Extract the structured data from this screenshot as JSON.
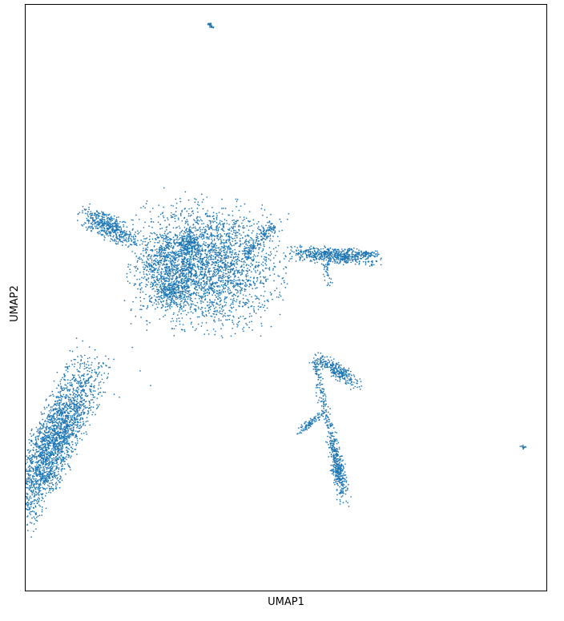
{
  "chart_data": {
    "type": "scatter",
    "title": "",
    "xlabel": "UMAP1",
    "ylabel": "UMAP2",
    "xlim": [
      -6,
      14
    ],
    "ylim": [
      -4,
      16
    ],
    "grid": false,
    "legend": "none",
    "xticks": [],
    "yticks": [],
    "point_color": "#1f77b4",
    "clusters": [
      {
        "shape": "blob",
        "center": [
          1.0,
          7.1
        ],
        "spread": [
          1.3,
          1.0
        ],
        "angle": -8,
        "count": 2600
      },
      {
        "shape": "blob",
        "center": [
          0.3,
          7.9
        ],
        "spread": [
          0.28,
          0.22
        ],
        "angle": 0,
        "count": 180
      },
      {
        "shape": "blob",
        "center": [
          -0.5,
          7.0
        ],
        "spread": [
          0.55,
          0.55
        ],
        "angle": 0,
        "count": 500
      },
      {
        "shape": "blob",
        "center": [
          -0.4,
          6.2
        ],
        "spread": [
          0.35,
          0.22
        ],
        "angle": 0,
        "count": 220
      },
      {
        "shape": "segment",
        "from": [
          2.4,
          7.4
        ],
        "to": [
          3.5,
          8.5
        ],
        "width": 0.12,
        "count": 180
      },
      {
        "shape": "blob",
        "center": [
          -2.8,
          8.4
        ],
        "spread": [
          0.55,
          0.2
        ],
        "angle": -25,
        "count": 500
      },
      {
        "shape": "blob",
        "center": [
          5.8,
          7.45
        ],
        "spread": [
          0.8,
          0.13
        ],
        "angle": -4,
        "count": 600
      },
      {
        "shape": "blob",
        "center": [
          7.1,
          7.5
        ],
        "spread": [
          0.2,
          0.06
        ],
        "angle": 0,
        "count": 60
      },
      {
        "shape": "segment",
        "from": [
          5.5,
          7.2
        ],
        "to": [
          5.7,
          6.4
        ],
        "width": 0.08,
        "count": 40
      },
      {
        "shape": "blob",
        "center": [
          -4.9,
          1.1
        ],
        "spread": [
          1.5,
          0.42
        ],
        "angle": 62,
        "count": 2400
      },
      {
        "shape": "segment",
        "from": [
          -5.4,
          -0.3
        ],
        "to": [
          -4.9,
          0.0
        ],
        "width": 0.08,
        "count": 30
      },
      {
        "shape": "blob",
        "center": [
          6.0,
          3.5
        ],
        "spread": [
          0.45,
          0.13
        ],
        "angle": -30,
        "count": 300
      },
      {
        "shape": "segment",
        "from": [
          5.1,
          3.9
        ],
        "to": [
          6.1,
          -0.2
        ],
        "width": 0.08,
        "count": 260
      },
      {
        "shape": "blob",
        "center": [
          6.0,
          0.1
        ],
        "spread": [
          0.55,
          0.13
        ],
        "angle": -78,
        "count": 320
      },
      {
        "shape": "blob",
        "center": [
          4.9,
          1.7
        ],
        "spread": [
          0.28,
          0.07
        ],
        "angle": 35,
        "count": 90
      },
      {
        "shape": "blob",
        "center": [
          1.1,
          15.3
        ],
        "spread": [
          0.08,
          0.03
        ],
        "angle": -40,
        "count": 25
      },
      {
        "shape": "blob",
        "center": [
          13.1,
          0.9
        ],
        "spread": [
          0.06,
          0.03
        ],
        "angle": 20,
        "count": 12
      },
      {
        "shape": "scatter",
        "points": [
          [
            -1.6,
            3.5
          ],
          [
            -1.9,
            4.3
          ],
          [
            -1.6,
            5.6
          ],
          [
            -2.0,
            6.5
          ],
          [
            -3.4,
            2.6
          ],
          [
            -3.2,
            2.7
          ],
          [
            -3.8,
            2.5
          ],
          [
            -2.4,
            2.6
          ],
          [
            -0.3,
            4.7
          ],
          [
            -0.2,
            5.2
          ],
          [
            0.1,
            4.9
          ],
          [
            -1.2,
            3.0
          ],
          [
            -2.2,
            5.9
          ],
          [
            -2.6,
            2.7
          ]
        ]
      }
    ]
  }
}
